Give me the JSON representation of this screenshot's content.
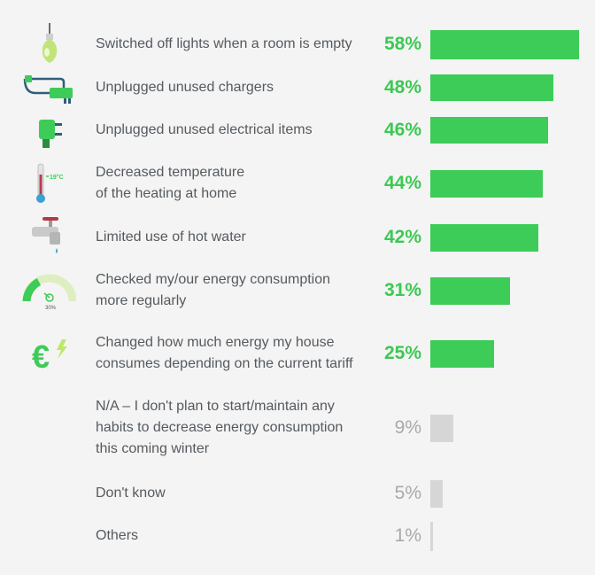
{
  "chart_data": {
    "type": "bar",
    "orientation": "horizontal",
    "xlim": [
      0,
      58
    ],
    "colors": {
      "highlight": "#3dcc57",
      "muted": "#d6d6d6",
      "highlight_text": "#3cc952",
      "muted_text": "#a9a9a9"
    },
    "categories": [
      {
        "label": "Switched off lights when a room is empty",
        "value": 58,
        "value_label": "58%",
        "style": "green",
        "icon": "light-bulb-icon"
      },
      {
        "label": "Unplugged unused chargers",
        "value": 48,
        "value_label": "48%",
        "style": "green",
        "icon": "charger-icon"
      },
      {
        "label": "Unplugged unused electrical items",
        "value": 46,
        "value_label": "46%",
        "style": "green",
        "icon": "plug-icon"
      },
      {
        "label": "Decreased temperature\nof the heating at home",
        "value": 44,
        "value_label": "44%",
        "style": "green",
        "icon": "thermometer-icon",
        "icon_text": "19°C"
      },
      {
        "label": "Limited use of hot water",
        "value": 42,
        "value_label": "42%",
        "style": "green",
        "icon": "water-tap-icon"
      },
      {
        "label": "Checked my/our energy consumption\nmore regularly",
        "value": 31,
        "value_label": "31%",
        "style": "green",
        "icon": "energy-gauge-icon",
        "icon_text": "30%"
      },
      {
        "label": "Changed how much energy my house\nconsumes depending on the current tariff",
        "value": 25,
        "value_label": "25%",
        "style": "green",
        "icon": "euro-energy-icon",
        "icon_text": "€"
      },
      {
        "label": "N/A – I don't plan to start/maintain any\nhabits to decrease energy consumption\nthis coming winter",
        "value": 9,
        "value_label": "9%",
        "style": "gray",
        "icon": ""
      },
      {
        "label": "Don't know",
        "value": 5,
        "value_label": "5%",
        "style": "gray",
        "icon": ""
      },
      {
        "label": "Others",
        "value": 1,
        "value_label": "1%",
        "style": "gray",
        "icon": ""
      }
    ]
  }
}
